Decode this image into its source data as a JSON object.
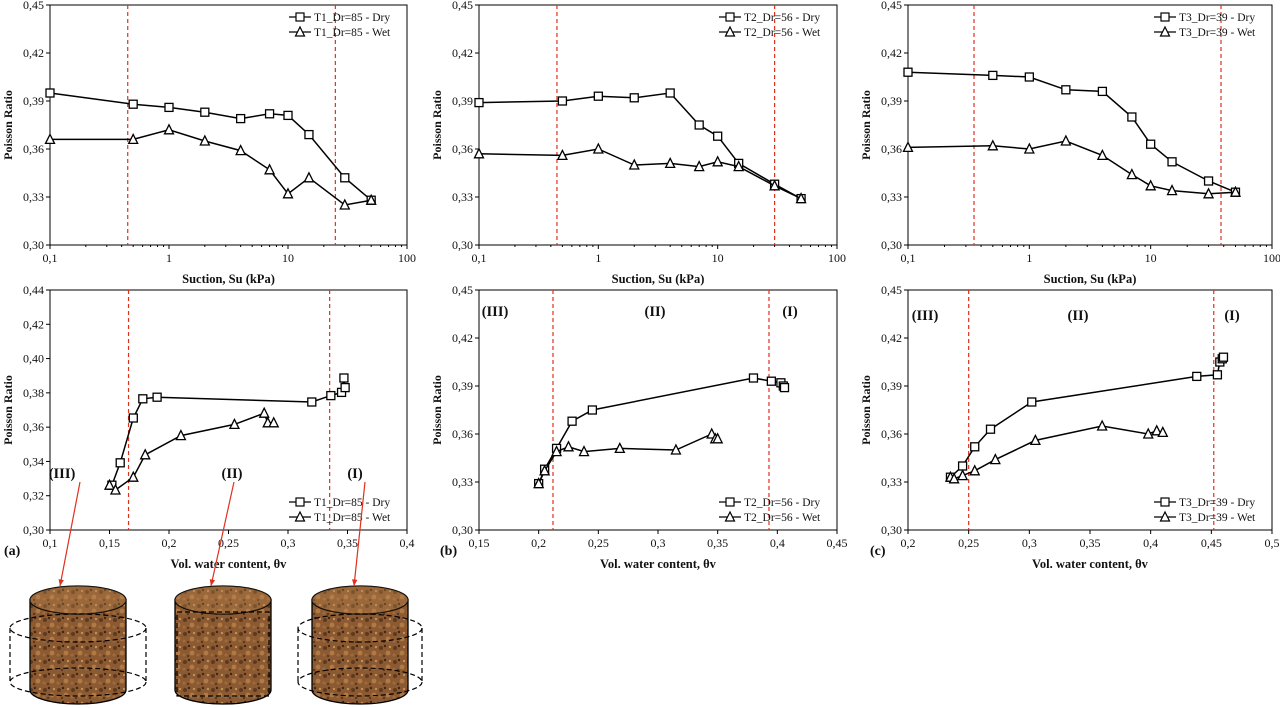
{
  "figure": {
    "panel_labels": [
      "(a)",
      "(b)",
      "(c)"
    ],
    "regime_labels": [
      "(III)",
      "(II)",
      "(I)"
    ],
    "colors": {
      "axis": "#000000",
      "series": "#000000",
      "boundary": "#e0301e",
      "arrow": "#e0301e",
      "soil": "#8b5a32"
    }
  },
  "chart_data": [
    {
      "type": "line",
      "panel": "a-top",
      "xlabel": "Suction, Su (kPa)",
      "ylabel": "Poisson Ratio",
      "xscale": "log",
      "xlim": [
        0.1,
        100
      ],
      "ylim": [
        0.3,
        0.45
      ],
      "xticks": [
        "0,1",
        "1",
        "10",
        "100"
      ],
      "yticks": [
        "0,30",
        "0,33",
        "0,36",
        "0,39",
        "0,42",
        "0,45"
      ],
      "legend_position": "top-right",
      "boundaries_x": [
        0.45,
        25
      ],
      "series": [
        {
          "name": "T1_Dr=85 - Dry",
          "marker": "square",
          "x": [
            0.1,
            0.5,
            1,
            2,
            4,
            7,
            10,
            15,
            30,
            50
          ],
          "y": [
            0.395,
            0.388,
            0.386,
            0.383,
            0.379,
            0.382,
            0.381,
            0.369,
            0.342,
            0.328
          ]
        },
        {
          "name": "T1_Dr=85 - Wet",
          "marker": "triangle",
          "x": [
            0.1,
            0.5,
            1,
            2,
            4,
            7,
            10,
            15,
            30,
            50
          ],
          "y": [
            0.366,
            0.366,
            0.372,
            0.365,
            0.359,
            0.347,
            0.332,
            0.342,
            0.325,
            0.328
          ]
        }
      ]
    },
    {
      "type": "line",
      "panel": "b-top",
      "xlabel": "Suction, Su (kPa)",
      "ylabel": "Poisson Ratio",
      "xscale": "log",
      "xlim": [
        0.1,
        100
      ],
      "ylim": [
        0.3,
        0.45
      ],
      "xticks": [
        "0,1",
        "1",
        "10",
        "100"
      ],
      "yticks": [
        "0,30",
        "0,33",
        "0,36",
        "0,39",
        "0,42",
        "0,45"
      ],
      "legend_position": "top-right",
      "boundaries_x": [
        0.45,
        30
      ],
      "series": [
        {
          "name": "T2_Dr=56 - Dry",
          "marker": "square",
          "x": [
            0.1,
            0.5,
            1,
            2,
            4,
            7,
            10,
            15,
            30,
            50
          ],
          "y": [
            0.389,
            0.39,
            0.393,
            0.392,
            0.395,
            0.375,
            0.368,
            0.351,
            0.338,
            0.329
          ]
        },
        {
          "name": "T2_Dr=56 - Wet",
          "marker": "triangle",
          "x": [
            0.1,
            0.5,
            1,
            2,
            4,
            7,
            10,
            15,
            30,
            50
          ],
          "y": [
            0.357,
            0.356,
            0.36,
            0.35,
            0.351,
            0.349,
            0.352,
            0.349,
            0.337,
            0.329
          ]
        }
      ]
    },
    {
      "type": "line",
      "panel": "c-top",
      "xlabel": "Suction, Su (kPa)",
      "ylabel": "Poisson Ratio",
      "xscale": "log",
      "xlim": [
        0.1,
        100
      ],
      "ylim": [
        0.3,
        0.45
      ],
      "xticks": [
        "0,1",
        "1",
        "10",
        "100"
      ],
      "yticks": [
        "0,30",
        "0,33",
        "0,36",
        "0,39",
        "0,42",
        "0,45"
      ],
      "legend_position": "top-right",
      "boundaries_x": [
        0.35,
        38
      ],
      "series": [
        {
          "name": "T3_Dr=39 - Dry",
          "marker": "square",
          "x": [
            0.1,
            0.5,
            1,
            2,
            4,
            7,
            10,
            15,
            30,
            50
          ],
          "y": [
            0.408,
            0.406,
            0.405,
            0.397,
            0.396,
            0.38,
            0.363,
            0.352,
            0.34,
            0.333
          ]
        },
        {
          "name": "T3_Dr=39 - Wet",
          "marker": "triangle",
          "x": [
            0.1,
            0.5,
            1,
            2,
            4,
            7,
            10,
            15,
            30,
            50
          ],
          "y": [
            0.361,
            0.362,
            0.36,
            0.365,
            0.356,
            0.344,
            0.337,
            0.334,
            0.332,
            0.333
          ]
        }
      ]
    },
    {
      "type": "line",
      "panel": "a-bottom",
      "xlabel": "Vol. water content, θv",
      "ylabel": "Poisson Ratio",
      "xlim": [
        0.1,
        0.4
      ],
      "ylim": [
        0.3,
        0.45
      ],
      "xticks": [
        "0,1",
        "0,15",
        "0,2",
        "0,25",
        "0,3",
        "0,35",
        "0,4"
      ],
      "yticks": [
        "0,30",
        "0,32",
        "0,34",
        "0,36",
        "0,38",
        "0,40",
        "0,42",
        "0,44"
      ],
      "legend_position": "bottom-right",
      "boundaries_x": [
        0.166,
        0.335
      ],
      "series": [
        {
          "name": "T1_Dr=85 - Dry",
          "marker": "square",
          "x": [
            0.152,
            0.159,
            0.17,
            0.178,
            0.19,
            0.32,
            0.336,
            0.345,
            0.347,
            0.348
          ],
          "y": [
            0.328,
            0.342,
            0.37,
            0.382,
            0.383,
            0.38,
            0.384,
            0.386,
            0.395,
            0.389
          ]
        },
        {
          "name": "T1_Dr=85 - Wet",
          "marker": "triangle",
          "x": [
            0.15,
            0.155,
            0.17,
            0.18,
            0.21,
            0.255,
            0.28,
            0.283,
            0.288
          ],
          "y": [
            0.328,
            0.325,
            0.333,
            0.347,
            0.359,
            0.366,
            0.373,
            0.367,
            0.367
          ]
        }
      ]
    },
    {
      "type": "line",
      "panel": "b-bottom",
      "xlabel": "Vol. water content, θv",
      "ylabel": "Poisson Ratio",
      "xlim": [
        0.15,
        0.45
      ],
      "ylim": [
        0.3,
        0.45
      ],
      "xticks": [
        "0,15",
        "0,2",
        "0,25",
        "0,3",
        "0,35",
        "0,4",
        "0,45"
      ],
      "yticks": [
        "0,30",
        "0,33",
        "0,36",
        "0,39",
        "0,42",
        "0,45"
      ],
      "legend_position": "bottom-right",
      "boundaries_x": [
        0.212,
        0.393
      ],
      "series": [
        {
          "name": "T2_Dr=56 - Dry",
          "marker": "square",
          "x": [
            0.2,
            0.205,
            0.215,
            0.228,
            0.245,
            0.38,
            0.395,
            0.403,
            0.405,
            0.406
          ],
          "y": [
            0.329,
            0.338,
            0.351,
            0.368,
            0.375,
            0.395,
            0.393,
            0.392,
            0.39,
            0.389
          ]
        },
        {
          "name": "T2_Dr=56 - Wet",
          "marker": "triangle",
          "x": [
            0.2,
            0.205,
            0.215,
            0.225,
            0.238,
            0.268,
            0.315,
            0.345,
            0.348,
            0.35
          ],
          "y": [
            0.329,
            0.337,
            0.349,
            0.352,
            0.349,
            0.351,
            0.35,
            0.36,
            0.357,
            0.357
          ]
        }
      ]
    },
    {
      "type": "line",
      "panel": "c-bottom",
      "xlabel": "Vol. water content, θv",
      "ylabel": "Poisson Ratio",
      "xlim": [
        0.2,
        0.5
      ],
      "ylim": [
        0.3,
        0.45
      ],
      "xticks": [
        "0,2",
        "0,25",
        "0,3",
        "0,35",
        "0,4",
        "0,45",
        "0,5"
      ],
      "yticks": [
        "0,30",
        "0,33",
        "0,36",
        "0,39",
        "0,42",
        "0,45"
      ],
      "legend_position": "bottom-right",
      "boundaries_x": [
        0.25,
        0.452
      ],
      "series": [
        {
          "name": "T3_Dr=39 - Dry",
          "marker": "square",
          "x": [
            0.235,
            0.245,
            0.255,
            0.268,
            0.302,
            0.438,
            0.455,
            0.457,
            0.459,
            0.46
          ],
          "y": [
            0.333,
            0.34,
            0.352,
            0.363,
            0.38,
            0.396,
            0.397,
            0.405,
            0.407,
            0.408
          ]
        },
        {
          "name": "T3_Dr=39 - Wet",
          "marker": "triangle",
          "x": [
            0.235,
            0.238,
            0.245,
            0.255,
            0.272,
            0.305,
            0.36,
            0.398,
            0.405,
            0.41
          ],
          "y": [
            0.333,
            0.332,
            0.334,
            0.337,
            0.344,
            0.356,
            0.365,
            0.36,
            0.362,
            0.361
          ]
        }
      ]
    }
  ]
}
